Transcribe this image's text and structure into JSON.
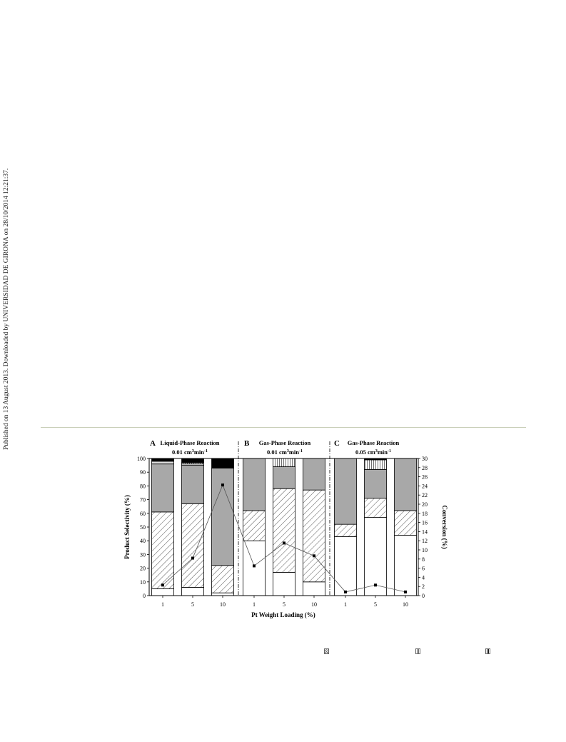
{
  "side_note": "Published on 13 August 2013. Downloaded by UNIVERSIDAD DE GIRONA on 28/10/2014 12:21:37.",
  "chart_data": {
    "type": "bar",
    "subtype": "stacked bar with line on secondary axis",
    "xlabel": "Pt Weight Loading (%)",
    "ylabel": "Product Selectivity (%)",
    "y2label": "Conversion (%)",
    "ylim": [
      0,
      100
    ],
    "y2lim": [
      0,
      30
    ],
    "y_ticks": [
      "0",
      "10",
      "20",
      "30",
      "40",
      "50",
      "60",
      "70",
      "80",
      "90",
      "100"
    ],
    "y2_ticks": [
      "0",
      "2",
      "4",
      "6",
      "8",
      "10",
      "12",
      "14",
      "16",
      "18",
      "20",
      "22",
      "24",
      "26",
      "28",
      "30"
    ],
    "categories": [
      "1",
      "5",
      "10",
      "1",
      "5",
      "10",
      "1",
      "5",
      "10"
    ],
    "panels": [
      {
        "letter": "A",
        "title_line1": "Liquid-Phase Reaction",
        "title_line2": "0.01 cm",
        "title_sup1": "3",
        "title_mid": "min",
        "title_sup2": "-1"
      },
      {
        "letter": "B",
        "title_line1": "Gas-Phase Reaction",
        "title_line2": "0.01 cm",
        "title_sup1": "3",
        "title_mid": "min",
        "title_sup2": "-1"
      },
      {
        "letter": "C",
        "title_line1": "Gas-Phase Reaction",
        "title_line2": "0.05 cm",
        "title_sup1": "3",
        "title_mid": "min",
        "title_sup2": "-1"
      }
    ],
    "series": [
      {
        "fill": "white",
        "values": [
          5,
          6,
          2,
          40,
          17,
          10,
          43,
          57,
          44
        ]
      },
      {
        "fill": "diagonal",
        "values": [
          56,
          61,
          20,
          22,
          61,
          67,
          9,
          14,
          18
        ]
      },
      {
        "fill": "gray",
        "values": [
          35,
          28,
          71,
          38,
          16,
          23,
          48,
          21,
          38
        ]
      },
      {
        "fill": "dotted",
        "values": [
          2,
          1,
          0,
          0,
          0,
          0,
          0,
          0,
          0
        ]
      },
      {
        "fill": "vertical",
        "values": [
          0,
          1,
          0,
          0,
          6,
          0,
          0,
          7,
          0
        ]
      },
      {
        "fill": "black",
        "values": [
          2,
          3,
          7,
          0,
          0,
          0,
          0,
          1,
          0
        ]
      }
    ],
    "conversion": [
      2.3,
      8.2,
      24.2,
      6.5,
      11.5,
      8.7,
      0.8,
      2.3,
      0.8
    ],
    "colors": {
      "gray": "#a8a8a8",
      "black": "#000000",
      "frame": "#000000"
    }
  }
}
